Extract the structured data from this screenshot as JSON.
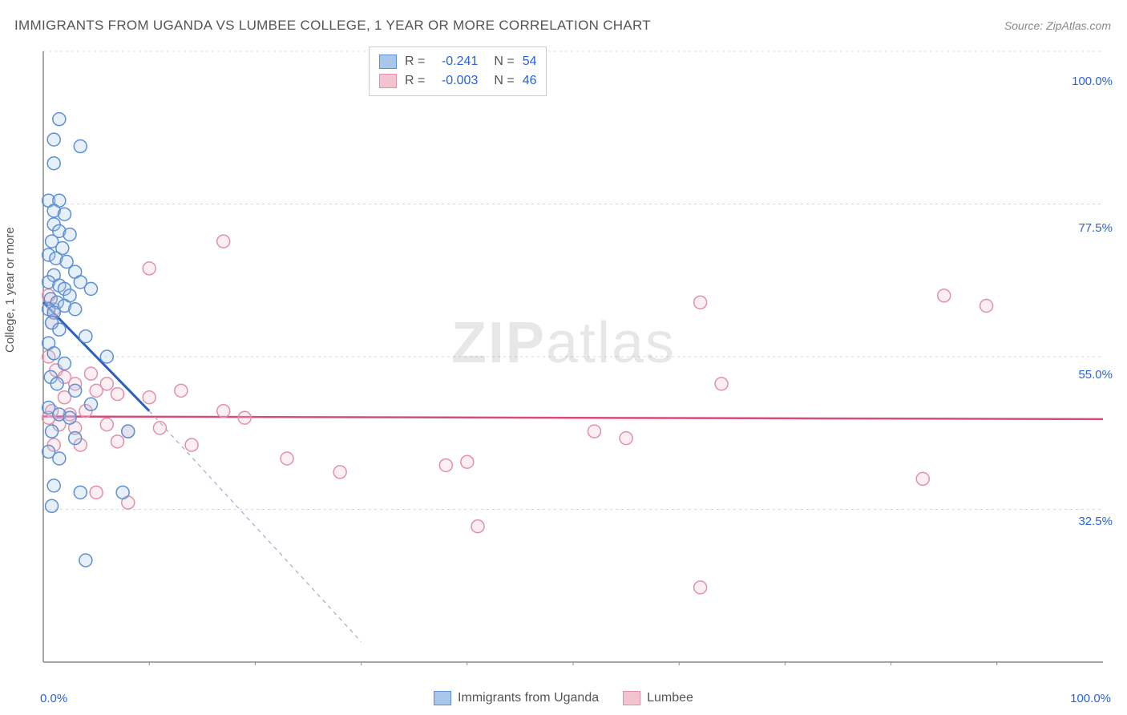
{
  "title": "IMMIGRANTS FROM UGANDA VS LUMBEE COLLEGE, 1 YEAR OR MORE CORRELATION CHART",
  "source_label": "Source:",
  "source_value": "ZipAtlas.com",
  "ylabel": "College, 1 year or more",
  "watermark": "ZIPatlas",
  "chart": {
    "type": "scatter",
    "background_color": "#ffffff",
    "grid_color": "#d8d8d8",
    "axis_color": "#888888",
    "xlim": [
      0,
      100
    ],
    "ylim": [
      10,
      100
    ],
    "x_ticks_major": [
      0,
      100
    ],
    "x_ticks_minor": [
      10,
      20,
      30,
      40,
      50,
      60,
      70,
      80,
      90
    ],
    "y_gridlines": [
      32.5,
      55.0,
      77.5,
      100.0
    ],
    "y_tick_labels": [
      "32.5%",
      "55.0%",
      "77.5%",
      "100.0%"
    ],
    "x_tick_labels": [
      "0.0%",
      "100.0%"
    ],
    "marker_radius": 8,
    "marker_stroke_width": 1.5,
    "marker_fill_opacity": 0.28,
    "series": [
      {
        "name": "Immigrants from Uganda",
        "color_stroke": "#5b8fd6",
        "color_fill": "#a9c6eb",
        "R": "-0.241",
        "N": "54",
        "trend_line": {
          "x1": 0,
          "y1": 63,
          "x2": 10,
          "y2": 47,
          "dash_extend_x2": 30,
          "dash_extend_y2": 13
        },
        "trend_color": "#2b5fc2",
        "trend_width": 3,
        "points": [
          [
            1.5,
            90
          ],
          [
            1,
            87
          ],
          [
            3.5,
            86
          ],
          [
            1,
            83.5
          ],
          [
            0.5,
            78
          ],
          [
            1.5,
            78
          ],
          [
            1,
            76.5
          ],
          [
            2,
            76
          ],
          [
            1,
            74.5
          ],
          [
            1.5,
            73.5
          ],
          [
            2.5,
            73
          ],
          [
            0.8,
            72
          ],
          [
            1.8,
            71
          ],
          [
            0.5,
            70
          ],
          [
            1.2,
            69.5
          ],
          [
            2.2,
            69
          ],
          [
            1,
            67
          ],
          [
            3,
            67.5
          ],
          [
            0.5,
            66
          ],
          [
            1.5,
            65.5
          ],
          [
            2,
            65
          ],
          [
            3.5,
            66
          ],
          [
            0.7,
            63.5
          ],
          [
            1.3,
            63
          ],
          [
            2.5,
            64
          ],
          [
            4.5,
            65
          ],
          [
            0.5,
            62
          ],
          [
            1,
            61.5
          ],
          [
            2,
            62.5
          ],
          [
            3,
            62
          ],
          [
            0.8,
            60
          ],
          [
            1.5,
            59
          ],
          [
            4,
            58
          ],
          [
            6,
            55
          ],
          [
            0.5,
            57
          ],
          [
            1,
            55.5
          ],
          [
            2,
            54
          ],
          [
            0.7,
            52
          ],
          [
            1.3,
            51
          ],
          [
            3,
            50
          ],
          [
            4.5,
            48
          ],
          [
            0.5,
            47.5
          ],
          [
            1.5,
            46.5
          ],
          [
            2.5,
            46
          ],
          [
            0.8,
            44
          ],
          [
            3,
            43
          ],
          [
            0.5,
            41
          ],
          [
            1.5,
            40
          ],
          [
            8,
            44
          ],
          [
            1,
            36
          ],
          [
            3.5,
            35
          ],
          [
            7.5,
            35
          ],
          [
            0.8,
            33
          ],
          [
            4,
            25
          ]
        ]
      },
      {
        "name": "Lumbee",
        "color_stroke": "#e091a8",
        "color_fill": "#f4c3d1",
        "R": "-0.003",
        "N": "46",
        "trend_line": {
          "x1": 0,
          "y1": 46.2,
          "x2": 100,
          "y2": 45.8
        },
        "trend_color": "#d64c7a",
        "trend_width": 2.5,
        "points": [
          [
            17,
            72
          ],
          [
            10,
            68
          ],
          [
            0.5,
            64
          ],
          [
            1,
            62
          ],
          [
            0.8,
            60
          ],
          [
            62,
            63
          ],
          [
            85,
            64
          ],
          [
            89,
            62.5
          ],
          [
            0.5,
            55
          ],
          [
            1.2,
            53
          ],
          [
            2,
            52
          ],
          [
            3,
            51
          ],
          [
            4.5,
            52.5
          ],
          [
            6,
            51
          ],
          [
            64,
            51
          ],
          [
            2,
            49
          ],
          [
            5,
            50
          ],
          [
            7,
            49.5
          ],
          [
            10,
            49
          ],
          [
            13,
            50
          ],
          [
            0.8,
            47
          ],
          [
            2.5,
            46.5
          ],
          [
            4,
            47
          ],
          [
            17,
            47
          ],
          [
            19,
            46
          ],
          [
            1.5,
            45
          ],
          [
            3,
            44.5
          ],
          [
            6,
            45
          ],
          [
            8,
            44
          ],
          [
            11,
            44.5
          ],
          [
            52,
            44
          ],
          [
            55,
            43
          ],
          [
            1,
            42
          ],
          [
            3.5,
            42
          ],
          [
            7,
            42.5
          ],
          [
            14,
            42
          ],
          [
            23,
            40
          ],
          [
            28,
            38
          ],
          [
            38,
            39
          ],
          [
            40,
            39.5
          ],
          [
            83,
            37
          ],
          [
            5,
            35
          ],
          [
            8,
            33.5
          ],
          [
            41,
            30
          ],
          [
            62,
            21
          ],
          [
            0.5,
            46
          ]
        ]
      }
    ]
  },
  "legend_bottom": [
    {
      "label": "Immigrants from Uganda",
      "swatch_stroke": "#5b8fd6",
      "swatch_fill": "#a9c6eb"
    },
    {
      "label": "Lumbee",
      "swatch_stroke": "#e091a8",
      "swatch_fill": "#f4c3d1"
    }
  ]
}
